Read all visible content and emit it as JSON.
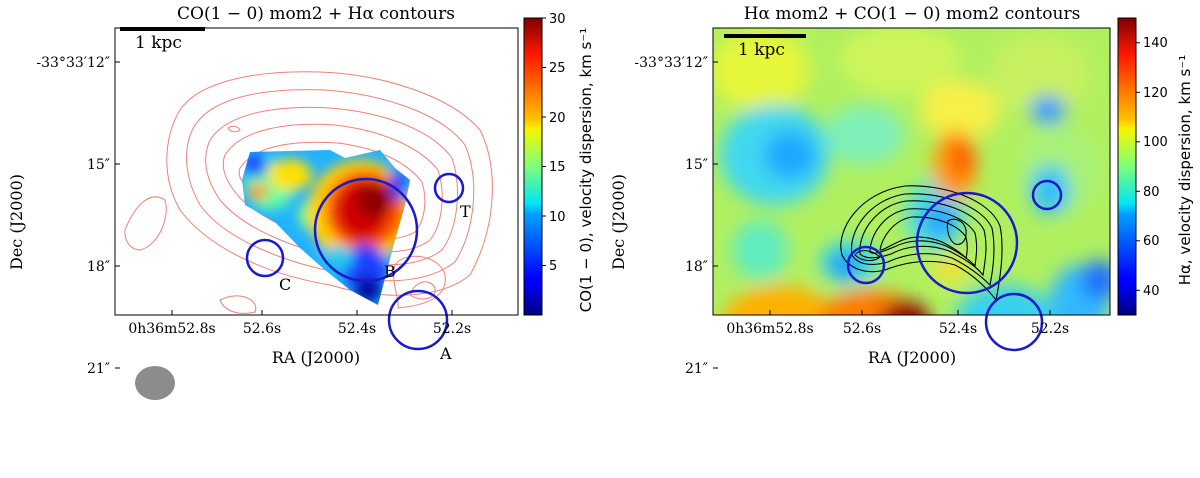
{
  "chart_data": [
    {
      "type": "heatmap",
      "title": "CO(1 − 0) mom2 + Hα contours",
      "xlabel": "RA (J2000)",
      "ylabel": "Dec (J2000)",
      "x_ticks": [
        "0h36m52.8s",
        "52.6s",
        "52.4s",
        "52.2s"
      ],
      "y_ticks": [
        "-33°33′12″",
        "15″",
        "18″",
        "21″"
      ],
      "colorbar": {
        "label": "CO(1 − 0), velocity dispersion, km s⁻¹",
        "range": [
          0,
          30
        ],
        "ticks": [
          "5",
          "10",
          "15",
          "20",
          "25",
          "30"
        ],
        "colormap": "jet"
      },
      "scalebar": "1 kpc",
      "contour_color": "#f08078",
      "apertures": [
        "A",
        "B",
        "C",
        "T"
      ]
    },
    {
      "type": "heatmap",
      "title": "Hα  mom2 + CO(1 − 0) mom2 contours",
      "xlabel": "RA (J2000)",
      "ylabel": "Dec (J2000)",
      "x_ticks": [
        "0h36m52.8s",
        "52.6s",
        "52.4s",
        "52.2s"
      ],
      "y_ticks": [
        "-33°33′12″",
        "15″",
        "18″",
        "21″"
      ],
      "colorbar": {
        "label": "Hα, velocity dispersion, km s⁻¹",
        "range": [
          30,
          150
        ],
        "ticks": [
          "40",
          "60",
          "80",
          "100",
          "120",
          "140"
        ],
        "colormap": "jet"
      },
      "scalebar": "1 kpc",
      "contour_color": "#000000"
    }
  ],
  "colors": {
    "aperture": "#1a1acc",
    "beam": "#8c8c8c"
  }
}
